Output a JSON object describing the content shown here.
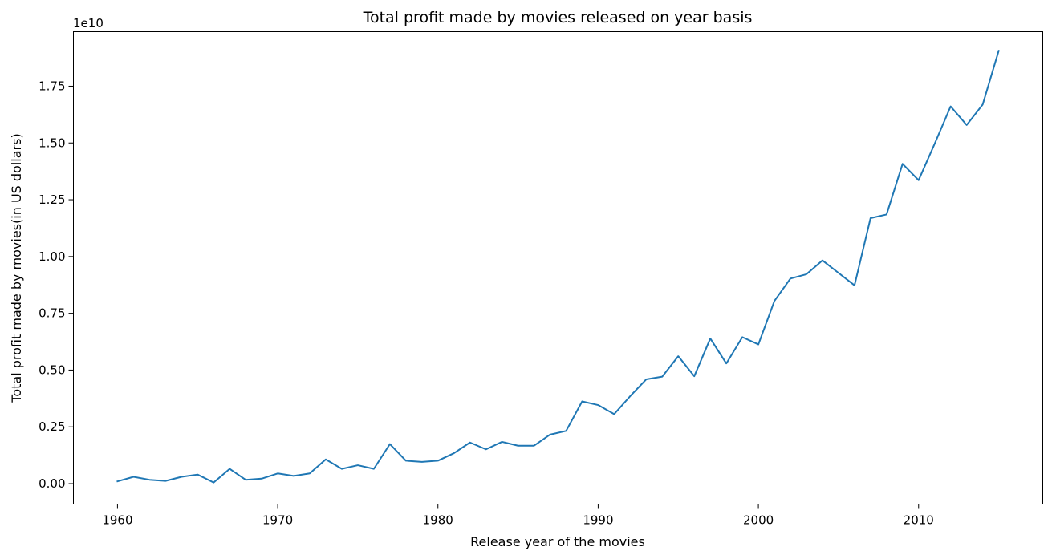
{
  "chart_data": {
    "type": "line",
    "title": "Total profit made by movies released on year basis",
    "xlabel": "Release year of the movies",
    "ylabel": "Total profit made by movies(in US dollars)",
    "y_offset_label": "1e10",
    "xlim": [
      1957.25,
      2017.75
    ],
    "ylim": [
      -0.09,
      1.99
    ],
    "x_ticks": [
      1960,
      1970,
      1980,
      1990,
      2000,
      2010
    ],
    "x_tick_labels": [
      "1960",
      "1970",
      "1980",
      "1990",
      "2000",
      "2010"
    ],
    "y_ticks": [
      0.0,
      0.25,
      0.5,
      0.75,
      1.0,
      1.25,
      1.5,
      1.75
    ],
    "y_tick_labels": [
      "0.00",
      "0.25",
      "0.50",
      "0.75",
      "1.00",
      "1.25",
      "1.50",
      "1.75"
    ],
    "grid": false,
    "line_color": "#1f77b4",
    "series": [
      {
        "x": [
          1960,
          1961,
          1962,
          1963,
          1964,
          1965,
          1966,
          1967,
          1968,
          1969,
          1970,
          1971,
          1972,
          1973,
          1974,
          1975,
          1976,
          1977,
          1978,
          1979,
          1980,
          1981,
          1982,
          1983,
          1984,
          1985,
          1986,
          1987,
          1988,
          1989,
          1990,
          1991,
          1992,
          1993,
          1994,
          1995,
          1996,
          1997,
          1998,
          1999,
          2000,
          2001,
          2002,
          2003,
          2004,
          2005,
          2006,
          2007,
          2008,
          2009,
          2010,
          2011,
          2012,
          2013,
          2014,
          2015
        ],
        "values": [
          0.01,
          0.03,
          0.017,
          0.012,
          0.03,
          0.04,
          0.005,
          0.065,
          0.017,
          0.022,
          0.045,
          0.034,
          0.045,
          0.107,
          0.065,
          0.081,
          0.065,
          0.174,
          0.101,
          0.096,
          0.101,
          0.134,
          0.181,
          0.151,
          0.184,
          0.167,
          0.167,
          0.216,
          0.232,
          0.362,
          0.346,
          0.306,
          0.385,
          0.459,
          0.471,
          0.561,
          0.473,
          0.639,
          0.529,
          0.645,
          0.613,
          0.804,
          0.903,
          0.922,
          0.983,
          0.928,
          0.873,
          1.169,
          1.185,
          1.408,
          1.336,
          1.496,
          1.661,
          1.579,
          1.669,
          1.906
        ]
      }
    ]
  }
}
